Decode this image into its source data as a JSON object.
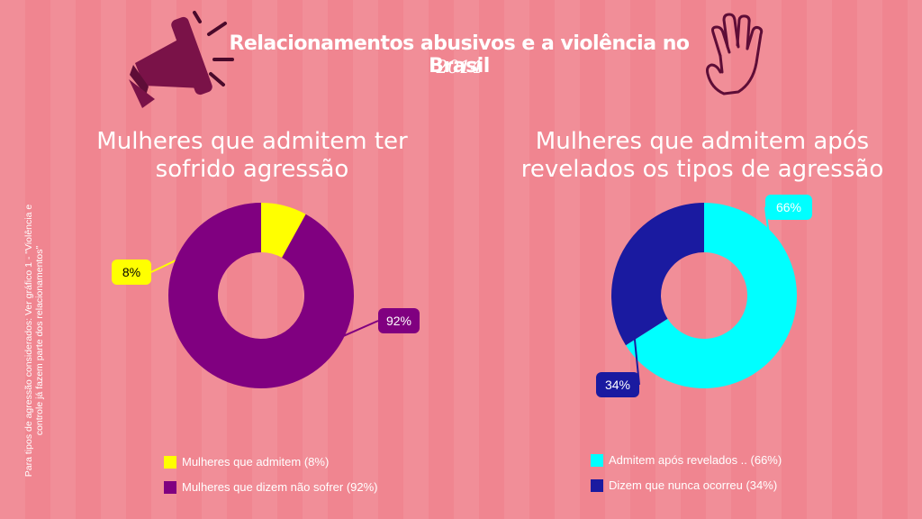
{
  "title": "Relacionamentos abusivos e a violência no Brasil",
  "year": "2014",
  "side_note": "Para tipos de agressão considerados: Ver gráfico 1 - \"Violência e controle já fazem parte dos relacionamentos\"",
  "icons": [
    "megaphone-icon",
    "raised-hand-icon"
  ],
  "colors": {
    "background": "#f08590",
    "yellow": "#ffff00",
    "purple": "#800080",
    "cyan": "#00ffff",
    "navy": "#1a1aa0"
  },
  "chart_data": [
    {
      "type": "pie",
      "donut": true,
      "title": "Mulheres que admitem ter sofrido agressão",
      "categories": [
        "Mulheres que admitem (8%)",
        "Mulheres que dizem não sofrer (92%)"
      ],
      "values": [
        8,
        92
      ],
      "data_labels": [
        "8%",
        "92%"
      ],
      "colors": [
        "#ffff00",
        "#800080"
      ],
      "legend": "bottom"
    },
    {
      "type": "pie",
      "donut": true,
      "title": "Mulheres que admitem após revelados os tipos de agressão",
      "categories": [
        "Admitem após revelados .. (66%)",
        "Dizem que nunca ocorreu (34%)"
      ],
      "values": [
        66,
        34
      ],
      "data_labels": [
        "66%",
        "34%"
      ],
      "colors": [
        "#00ffff",
        "#1a1aa0"
      ],
      "legend": "bottom"
    }
  ]
}
